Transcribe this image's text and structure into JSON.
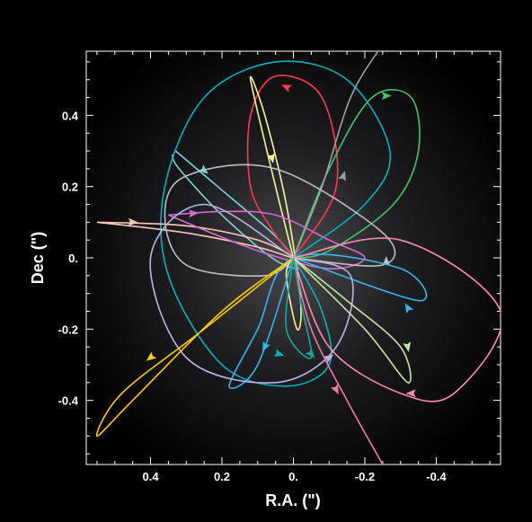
{
  "chart_data": {
    "type": "line",
    "title": "",
    "xlabel": "R.A. (\")",
    "ylabel": "Dec (\")",
    "xlim": [
      0.58,
      -0.58
    ],
    "ylim": [
      -0.58,
      0.58
    ],
    "x_ticks": [
      {
        "value": 0.4,
        "label": "0.4"
      },
      {
        "value": 0.2,
        "label": "0.2"
      },
      {
        "value": 0.0,
        "label": "0."
      },
      {
        "value": -0.2,
        "label": "-0.2"
      },
      {
        "value": -0.4,
        "label": "-0.4"
      }
    ],
    "y_ticks": [
      {
        "value": 0.4,
        "label": "0.4"
      },
      {
        "value": 0.2,
        "label": "0.2"
      },
      {
        "value": 0.0,
        "label": "0."
      },
      {
        "value": -0.2,
        "label": "-0.2"
      },
      {
        "value": -0.4,
        "label": "-0.4"
      }
    ],
    "grid": false,
    "background": "black with soft gray radial glow at center",
    "series": [
      {
        "color": "#7fd3d6",
        "points": [
          [
            0.33,
            0.3
          ],
          [
            0.2,
            0.19
          ],
          [
            0.06,
            0.07
          ],
          [
            0.0,
            0.0
          ],
          [
            -0.01,
            -0.03
          ],
          [
            0.06,
            0.0
          ],
          [
            0.2,
            0.12
          ],
          [
            0.32,
            0.25
          ],
          [
            0.34,
            0.29
          ]
        ],
        "arrows": [
          [
            0.25,
            0.245
          ]
        ]
      },
      {
        "color": "#00b2bd",
        "points": [
          [
            0.0,
            0.0
          ],
          [
            -0.2,
            0.15
          ],
          [
            -0.27,
            0.3
          ],
          [
            -0.15,
            0.5
          ],
          [
            0.05,
            0.55
          ],
          [
            0.25,
            0.45
          ],
          [
            0.36,
            0.2
          ],
          [
            0.35,
            -0.05
          ],
          [
            0.2,
            -0.3
          ],
          [
            0.02,
            -0.36
          ],
          [
            -0.1,
            -0.3
          ],
          [
            -0.08,
            -0.15
          ],
          [
            0.0,
            0.0
          ]
        ],
        "arrows": [
          [
            0.04,
            -0.27
          ]
        ]
      },
      {
        "color": "#ff3b4e",
        "points": [
          [
            0.0,
            0.0
          ],
          [
            -0.12,
            0.2
          ],
          [
            -0.08,
            0.45
          ],
          [
            0.05,
            0.51
          ],
          [
            0.12,
            0.4
          ],
          [
            0.12,
            0.2
          ],
          [
            0.06,
            0.08
          ],
          [
            0.0,
            0.0
          ]
        ],
        "arrows": [
          [
            0.02,
            0.48
          ]
        ]
      },
      {
        "color": "#45c46a",
        "points": [
          [
            0.0,
            0.0
          ],
          [
            -0.1,
            0.25
          ],
          [
            -0.22,
            0.45
          ],
          [
            -0.33,
            0.45
          ],
          [
            -0.35,
            0.3
          ],
          [
            -0.28,
            0.15
          ],
          [
            -0.1,
            0.02
          ],
          [
            0.0,
            0.0
          ]
        ],
        "arrows": [
          [
            -0.26,
            0.455
          ]
        ]
      },
      {
        "color": "#f5f59a",
        "points": [
          [
            0.0,
            0.0
          ],
          [
            0.05,
            0.2
          ],
          [
            0.12,
            0.5
          ],
          [
            0.08,
            0.4
          ],
          [
            0.02,
            0.15
          ],
          [
            -0.02,
            -0.12
          ],
          [
            -0.01,
            -0.2
          ],
          [
            0.02,
            -0.05
          ],
          [
            0.0,
            0.0
          ]
        ],
        "arrows": [
          [
            0.06,
            0.28
          ]
        ]
      },
      {
        "color": "#a0a0a0",
        "points": [
          [
            0.0,
            0.0
          ],
          [
            -0.08,
            0.2
          ],
          [
            -0.16,
            0.45
          ],
          [
            -0.25,
            0.6
          ]
        ],
        "arrows": [
          [
            -0.14,
            0.23
          ]
        ]
      },
      {
        "color": "#ffc8b4",
        "points": [
          [
            0.55,
            0.1
          ],
          [
            0.3,
            0.09
          ],
          [
            0.1,
            0.05
          ],
          [
            0.0,
            0.0
          ],
          [
            0.1,
            0.03
          ],
          [
            0.3,
            0.07
          ],
          [
            0.55,
            0.1
          ]
        ],
        "arrows": [
          [
            0.45,
            0.1
          ]
        ]
      },
      {
        "color": "#d56bd1",
        "points": [
          [
            0.35,
            0.12
          ],
          [
            0.2,
            0.13
          ],
          [
            0.05,
            0.12
          ],
          [
            -0.1,
            0.05
          ],
          [
            -0.2,
            0.0
          ],
          [
            -0.1,
            -0.03
          ],
          [
            0.1,
            0.02
          ],
          [
            0.35,
            0.12
          ]
        ],
        "arrows": [
          [
            0.28,
            0.125
          ]
        ]
      },
      {
        "color": "#bfbfbf",
        "points": [
          [
            0.0,
            0.0
          ],
          [
            -0.25,
            -0.02
          ],
          [
            -0.25,
            0.07
          ],
          [
            0.05,
            0.25
          ],
          [
            0.3,
            0.23
          ],
          [
            0.36,
            0.12
          ],
          [
            0.3,
            -0.02
          ],
          [
            0.08,
            -0.05
          ],
          [
            0.0,
            0.0
          ]
        ],
        "arrows": [
          [
            -0.26,
            -0.01
          ]
        ]
      },
      {
        "color": "#3ab4ea",
        "points": [
          [
            0.0,
            0.0
          ],
          [
            -0.35,
            -0.12
          ],
          [
            -0.3,
            -0.03
          ],
          [
            0.0,
            0.0
          ],
          [
            0.1,
            -0.2
          ],
          [
            0.18,
            -0.36
          ],
          [
            0.1,
            -0.3
          ],
          [
            0.0,
            0.0
          ]
        ],
        "arrows": [
          [
            -0.32,
            -0.14
          ],
          [
            0.08,
            -0.25
          ]
        ]
      },
      {
        "color": "#b8b6e8",
        "points": [
          [
            0.0,
            0.0
          ],
          [
            0.25,
            0.15
          ],
          [
            0.4,
            0.0
          ],
          [
            0.3,
            -0.28
          ],
          [
            0.05,
            -0.35
          ],
          [
            -0.12,
            -0.25
          ],
          [
            -0.16,
            -0.05
          ],
          [
            0.0,
            0.0
          ]
        ],
        "arrows": [
          [
            -0.1,
            -0.28
          ]
        ]
      },
      {
        "color": "#ff8fae",
        "points": [
          [
            0.0,
            0.0
          ],
          [
            -0.3,
            0.05
          ],
          [
            -0.58,
            -0.15
          ],
          [
            -0.45,
            -0.38
          ],
          [
            -0.3,
            -0.38
          ],
          [
            -0.1,
            -0.25
          ],
          [
            0.0,
            0.0
          ]
        ],
        "arrows": [
          [
            -0.33,
            -0.38
          ]
        ]
      },
      {
        "color": "#ffcc00",
        "points": [
          [
            0.0,
            0.0
          ],
          [
            0.25,
            -0.2
          ],
          [
            0.48,
            -0.38
          ],
          [
            0.55,
            -0.5
          ],
          [
            0.45,
            -0.4
          ],
          [
            0.2,
            -0.15
          ],
          [
            0.0,
            0.0
          ]
        ],
        "arrows": [
          [
            0.4,
            -0.28
          ]
        ]
      },
      {
        "color": "#ee7aa6",
        "points": [
          [
            0.0,
            0.0
          ],
          [
            -0.05,
            -0.2
          ],
          [
            -0.15,
            -0.4
          ],
          [
            -0.25,
            -0.58
          ]
        ],
        "arrows": [
          [
            -0.12,
            -0.37
          ]
        ]
      },
      {
        "color": "#c8e6a0",
        "points": [
          [
            0.0,
            0.0
          ],
          [
            -0.15,
            -0.12
          ],
          [
            -0.3,
            -0.25
          ],
          [
            -0.32,
            -0.35
          ],
          [
            -0.2,
            -0.2
          ],
          [
            0.0,
            0.0
          ]
        ],
        "arrows": [
          [
            -0.32,
            -0.25
          ]
        ]
      },
      {
        "color": "#1aa59a",
        "points": [
          [
            0.0,
            0.0
          ],
          [
            0.02,
            -0.2
          ],
          [
            -0.05,
            -0.28
          ],
          [
            -0.02,
            -0.12
          ],
          [
            0.0,
            0.0
          ]
        ],
        "arrows": [
          [
            -0.05,
            -0.27
          ]
        ]
      }
    ]
  }
}
